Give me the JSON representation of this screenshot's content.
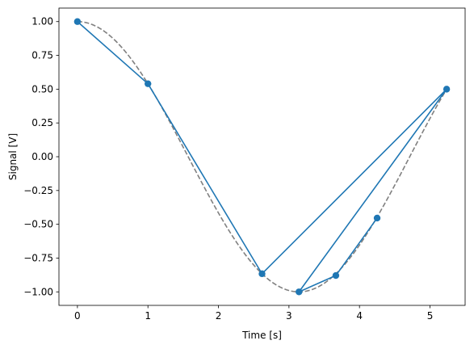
{
  "chart_data": {
    "type": "line",
    "xlabel": "Time [s]",
    "ylabel": "Signal [V]",
    "xlim": [
      -0.262,
      5.498
    ],
    "ylim": [
      -1.1,
      1.1
    ],
    "x_ticks": [
      0,
      1,
      2,
      3,
      4,
      5
    ],
    "x_tick_labels": [
      "0",
      "1",
      "2",
      "3",
      "4",
      "5"
    ],
    "y_ticks": [
      1.0,
      0.75,
      0.5,
      0.25,
      0.0,
      -0.25,
      -0.5,
      -0.75,
      -1.0
    ],
    "y_tick_labels": [
      "1.00",
      "0.75",
      "0.50",
      "0.25",
      "0.00",
      "−0.25",
      "−0.50",
      "−0.75",
      "−1.00"
    ],
    "grid": false,
    "colors": {
      "data_series": "#1f77b4",
      "reference_curve": "#808080"
    },
    "series": [
      {
        "style": "solid line with circle markers",
        "x": [
          0.0,
          1.0,
          2.618,
          5.236,
          3.142,
          3.665,
          4.25
        ],
        "y": [
          1.0,
          0.54,
          -0.866,
          0.5,
          -1.0,
          -0.879,
          -0.454
        ]
      },
      {
        "style": "dashed line",
        "function": "cos(t)",
        "x_range": [
          0.0,
          5.236
        ]
      }
    ]
  }
}
